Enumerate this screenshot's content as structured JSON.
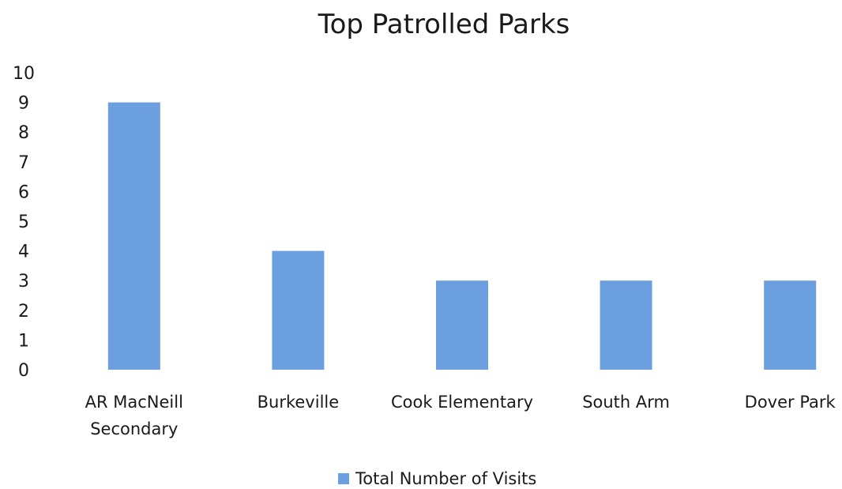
{
  "chart_data": {
    "type": "bar",
    "title": "Top Patrolled Parks",
    "xlabel": "",
    "ylabel": "",
    "categories": [
      [
        "AR MacNeill",
        "Secondary"
      ],
      [
        "Burkeville"
      ],
      [
        "Cook Elementary"
      ],
      [
        "South Arm"
      ],
      [
        "Dover Park"
      ]
    ],
    "series": [
      {
        "name": "Total Number of Visits",
        "values": [
          9,
          4,
          3,
          3,
          3
        ],
        "color": "#6b9fdf"
      }
    ],
    "y_ticks": [
      "0",
      "1",
      "2",
      "3",
      "4",
      "5",
      "6",
      "7",
      "8",
      "9",
      "10"
    ],
    "ylim": [
      0,
      10
    ],
    "grid": false,
    "legend_position": "bottom"
  }
}
